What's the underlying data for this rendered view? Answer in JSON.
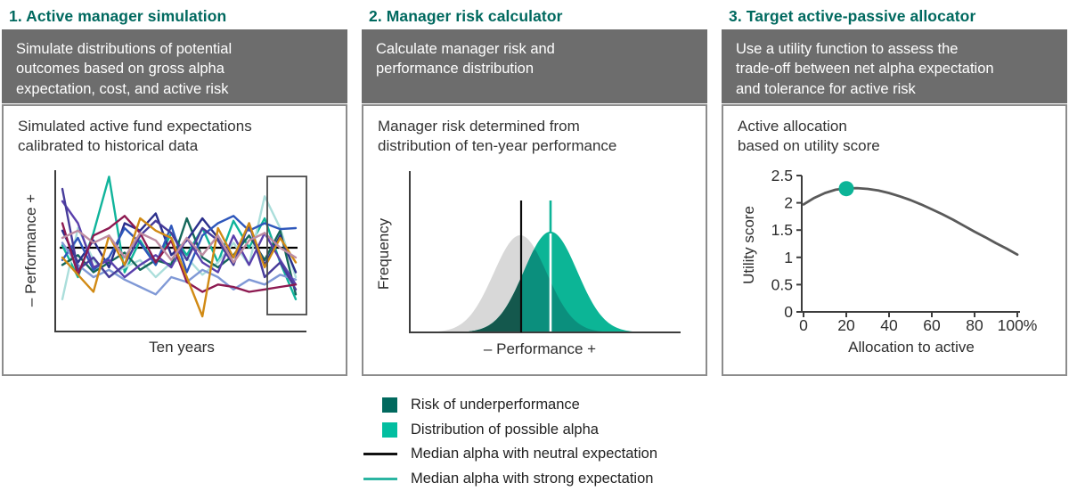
{
  "colors": {
    "heading_teal": "#00695F",
    "desc_bg": "#6D6D6D",
    "desc_text": "#FFFFFF",
    "panel_border": "#8C8C8C",
    "axis": "#3D3D3D",
    "text_dark": "#2E2E2E",
    "accent_teal": "#0CB497"
  },
  "panels": [
    {
      "title": "1. Active manager simulation",
      "description": "Simulate distributions of potential\noutcomes based on gross alpha\nexpectation, cost, and active risk",
      "subtitle": "Simulated active fund expectations\ncalibrated to historical data"
    },
    {
      "title": "2. Manager risk calculator",
      "description": "Calculate manager risk and\nperformance distribution",
      "subtitle": "Manager risk determined from\ndistribution of ten-year performance"
    },
    {
      "title": "3. Target active-passive allocator",
      "description": "Use a utility function to assess the\ntrade-off between net alpha expectation\nand tolerance for active risk",
      "subtitle": "Active allocation\nbased on utility score"
    }
  ],
  "legend": {
    "items": [
      {
        "type": "square",
        "color": "#01695E",
        "label": "Risk of underperformance"
      },
      {
        "type": "square",
        "color": "#02BEA0",
        "label": "Distribution of possible alpha"
      },
      {
        "type": "line",
        "color": "#111111",
        "label": "Median alpha with neutral expectation"
      },
      {
        "type": "line",
        "color": "#2BB5A2",
        "label": "Median alpha with strong expectation"
      }
    ]
  },
  "chart_data": [
    {
      "id": "active-manager-simulation",
      "type": "line",
      "title": "Simulated active fund expectations calibrated to historical data",
      "xlabel": "Ten years",
      "ylabel": "– Performance +",
      "note": "schematic simulated relative-performance paths; 0 = flat benchmark line; terminal values boxed",
      "zero_line": 0,
      "x_points": 16,
      "series": [
        {
          "color": "#10B49B",
          "values": [
            0.05,
            -0.6,
            0.3,
            1.45,
            -0.5,
            0.15,
            -0.35,
            0.3,
            -0.15,
            0.4,
            -0.3,
            0.55,
            0.0,
            0.6,
            -0.3,
            -1.05
          ]
        },
        {
          "color": "#ABDEDB",
          "values": [
            -1.05,
            0.4,
            -0.25,
            -0.6,
            -0.4,
            -0.25,
            -0.6,
            -0.3,
            -0.2,
            -0.55,
            -0.3,
            0.1,
            -0.35,
            1.05,
            0.4,
            -0.6
          ]
        },
        {
          "color": "#14675A",
          "values": [
            -0.35,
            -0.15,
            -0.5,
            -0.3,
            -0.1,
            -0.45,
            -0.25,
            -0.35,
            0.6,
            -0.2,
            -0.4,
            -0.15,
            0.25,
            -0.25,
            0.35,
            -0.95
          ]
        },
        {
          "color": "#2B2F8C",
          "values": [
            0.35,
            -0.3,
            0.15,
            -0.4,
            0.5,
            0.35,
            0.7,
            -0.15,
            0.15,
            0.6,
            0.2,
            -0.2,
            0.45,
            -0.35,
            0.25,
            -0.5
          ]
        },
        {
          "color": "#2E57BB",
          "values": [
            -0.25,
            0.2,
            -0.45,
            -0.2,
            0.4,
            0.1,
            -0.35,
            0.45,
            -0.5,
            0.25,
            0.5,
            0.65,
            0.35,
            0.5,
            0.38,
            0.4
          ]
        },
        {
          "color": "#8099D6",
          "values": [
            0.1,
            -0.35,
            -0.6,
            -0.45,
            -0.65,
            -0.8,
            -0.95,
            -0.6,
            -0.7,
            -0.45,
            -0.6,
            -0.85,
            -0.65,
            -0.75,
            -0.55,
            -0.65
          ]
        },
        {
          "color": "#5A40AC",
          "values": [
            0.95,
            0.5,
            -0.4,
            -0.25,
            -0.6,
            -0.35,
            -0.15,
            -0.4,
            0.2,
            -0.3,
            -0.5,
            0.25,
            -0.35,
            0.3,
            -0.25,
            -0.75
          ]
        },
        {
          "color": "#473C9A",
          "values": [
            1.2,
            -0.45,
            -0.2,
            -0.6,
            -0.35,
            0.25,
            0.55,
            0.3,
            -0.25,
            0.4,
            0.15,
            -0.35,
            0.5,
            -0.6,
            -0.3,
            -0.85
          ]
        },
        {
          "color": "#8D1A51",
          "values": [
            0.5,
            -0.55,
            0.25,
            0.4,
            0.65,
            0.3,
            -0.3,
            0.15,
            -0.7,
            -0.9,
            -0.75,
            -0.8,
            -0.9,
            -0.85,
            -0.8,
            -0.75
          ]
        },
        {
          "color": "#D18A14",
          "values": [
            -0.2,
            -0.55,
            -0.9,
            0.25,
            -0.35,
            0.6,
            0.35,
            0.2,
            -0.6,
            -1.4,
            0.4,
            -0.2,
            0.5,
            -0.4,
            0.2,
            -0.3
          ]
        },
        {
          "color": "#BD8CA2",
          "values": [
            0.2,
            0.35,
            0.1,
            0.25,
            -0.2,
            0.3,
            0.15,
            -0.25,
            0.2,
            -0.15,
            0.25,
            -0.3,
            0.15,
            0.3,
            0.0,
            -0.2
          ]
        }
      ]
    },
    {
      "id": "manager-risk-distributions",
      "type": "area",
      "title": "Manager risk determined from distribution of ten-year performance",
      "xlabel": "– Performance +",
      "ylabel": "Frequency",
      "units": "svg-px, schematic gaussian curves above baseline",
      "curves": [
        {
          "name": "neutral-expectation-distribution",
          "color": "#D8D8D8",
          "center": 176,
          "sigma": 30,
          "height": 109
        },
        {
          "name": "distribution-of-possible-alpha",
          "color": "#0CB596",
          "center": 210,
          "sigma": 30,
          "height": 113
        }
      ],
      "overlap_color": "#0B8F7D",
      "risk_region": {
        "name": "risk-of-underperformance",
        "color": "#14584D",
        "to_x": 177
      },
      "median_lines": [
        {
          "name": "median-alpha-neutral-expectation",
          "color": "#0A0A0A",
          "x": 177
        },
        {
          "name": "median-alpha-strong-expectation",
          "color": "#0CB497",
          "x": 210,
          "inside_curve_color": "#FFFFFF"
        }
      ]
    },
    {
      "id": "utility-allocation",
      "type": "line",
      "title": "Active allocation based on utility score",
      "xlabel": "Allocation to active",
      "ylabel": "Utility score",
      "ylim": [
        0,
        2.5
      ],
      "xlim": [
        0,
        100
      ],
      "x": [
        0,
        5,
        10,
        15,
        20,
        25,
        30,
        35,
        40,
        45,
        50,
        55,
        60,
        65,
        70,
        75,
        80,
        85,
        90,
        95,
        100
      ],
      "y": [
        1.97,
        2.09,
        2.18,
        2.24,
        2.265,
        2.27,
        2.255,
        2.225,
        2.18,
        2.12,
        2.05,
        1.97,
        1.88,
        1.79,
        1.69,
        1.58,
        1.47,
        1.37,
        1.26,
        1.16,
        1.05
      ],
      "marker": {
        "x": 20,
        "y": 2.26,
        "color": "#0CB497"
      },
      "line_color": "#5A5A5A",
      "xtick_values": [
        0,
        20,
        40,
        60,
        80,
        100
      ],
      "xtick_labels": [
        "0",
        "20",
        "40",
        "60",
        "80",
        "100%"
      ],
      "ytick_values": [
        0,
        0.5,
        1,
        1.5,
        2,
        2.5
      ],
      "ytick_labels": [
        "0",
        "0.5",
        "1",
        "1.5",
        "2",
        "2.5"
      ]
    }
  ]
}
